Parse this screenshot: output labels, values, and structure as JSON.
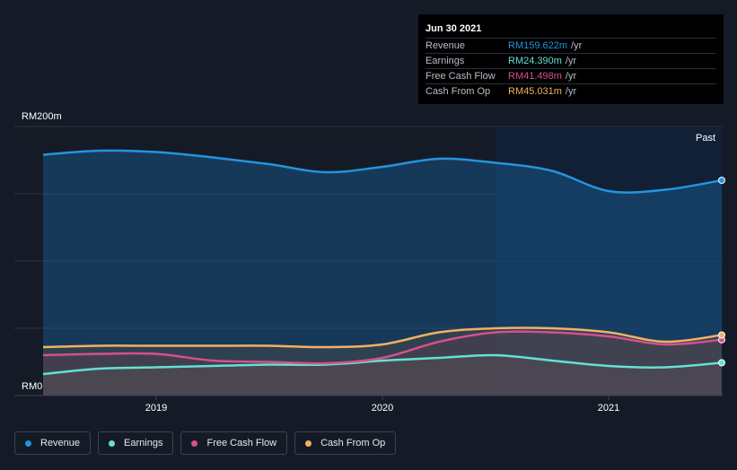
{
  "tooltip": {
    "date": "Jun 30 2021",
    "rows": [
      {
        "label": "Revenue",
        "value": "RM159.622m",
        "unit": "/yr",
        "color": "#2394df"
      },
      {
        "label": "Earnings",
        "value": "RM24.390m",
        "unit": "/yr",
        "color": "#63e1d4"
      },
      {
        "label": "Free Cash Flow",
        "value": "RM41.498m",
        "unit": "/yr",
        "color": "#d5508c"
      },
      {
        "label": "Cash From Op",
        "value": "RM45.031m",
        "unit": "/yr",
        "color": "#f3b063"
      }
    ]
  },
  "past_label": "Past",
  "legend": [
    {
      "label": "Revenue",
      "color": "#2394df"
    },
    {
      "label": "Earnings",
      "color": "#63e1d4"
    },
    {
      "label": "Free Cash Flow",
      "color": "#d5508c"
    },
    {
      "label": "Cash From Op",
      "color": "#f3b063"
    }
  ],
  "chart_data": {
    "type": "area",
    "ylim": [
      0,
      200
    ],
    "y_ticks": [
      0,
      50,
      100,
      150,
      200
    ],
    "y_tick_labels": {
      "0": "RM0",
      "200": "RM200m"
    },
    "xlim": [
      2018.5,
      2021.5
    ],
    "x_ticks": [
      2019,
      2020,
      2021
    ],
    "x_tick_labels": [
      "2019",
      "2020",
      "2021"
    ],
    "past_start": 2020.5,
    "grid": true,
    "series": [
      {
        "name": "Revenue",
        "color": "#2394df",
        "x": [
          2018.5,
          2018.75,
          2019.0,
          2019.25,
          2019.5,
          2019.75,
          2020.0,
          2020.25,
          2020.5,
          2020.75,
          2021.0,
          2021.25,
          2021.5
        ],
        "values": [
          179,
          182,
          181,
          177,
          172,
          166,
          170,
          176,
          173,
          167,
          152,
          153,
          160
        ]
      },
      {
        "name": "Earnings",
        "color": "#63e1d4",
        "x": [
          2018.5,
          2018.75,
          2019.0,
          2019.25,
          2019.5,
          2019.75,
          2020.0,
          2020.25,
          2020.5,
          2020.75,
          2021.0,
          2021.25,
          2021.5
        ],
        "values": [
          16,
          20,
          21,
          22,
          23,
          23,
          26,
          28,
          30,
          26,
          22,
          21,
          24.4
        ]
      },
      {
        "name": "Free Cash Flow",
        "color": "#d5508c",
        "x": [
          2018.5,
          2018.75,
          2019.0,
          2019.25,
          2019.5,
          2019.75,
          2020.0,
          2020.25,
          2020.5,
          2020.75,
          2021.0,
          2021.25,
          2021.5
        ],
        "values": [
          30,
          31,
          31,
          26,
          25,
          24,
          28,
          40,
          47,
          47,
          44,
          38,
          41.5
        ]
      },
      {
        "name": "Cash From Op",
        "color": "#f3b063",
        "x": [
          2018.5,
          2018.75,
          2019.0,
          2019.25,
          2019.5,
          2019.75,
          2020.0,
          2020.25,
          2020.5,
          2020.75,
          2021.0,
          2021.25,
          2021.5
        ],
        "values": [
          36,
          37,
          37,
          37,
          37,
          36,
          38,
          47,
          50,
          50,
          47,
          40,
          45
        ]
      }
    ]
  }
}
